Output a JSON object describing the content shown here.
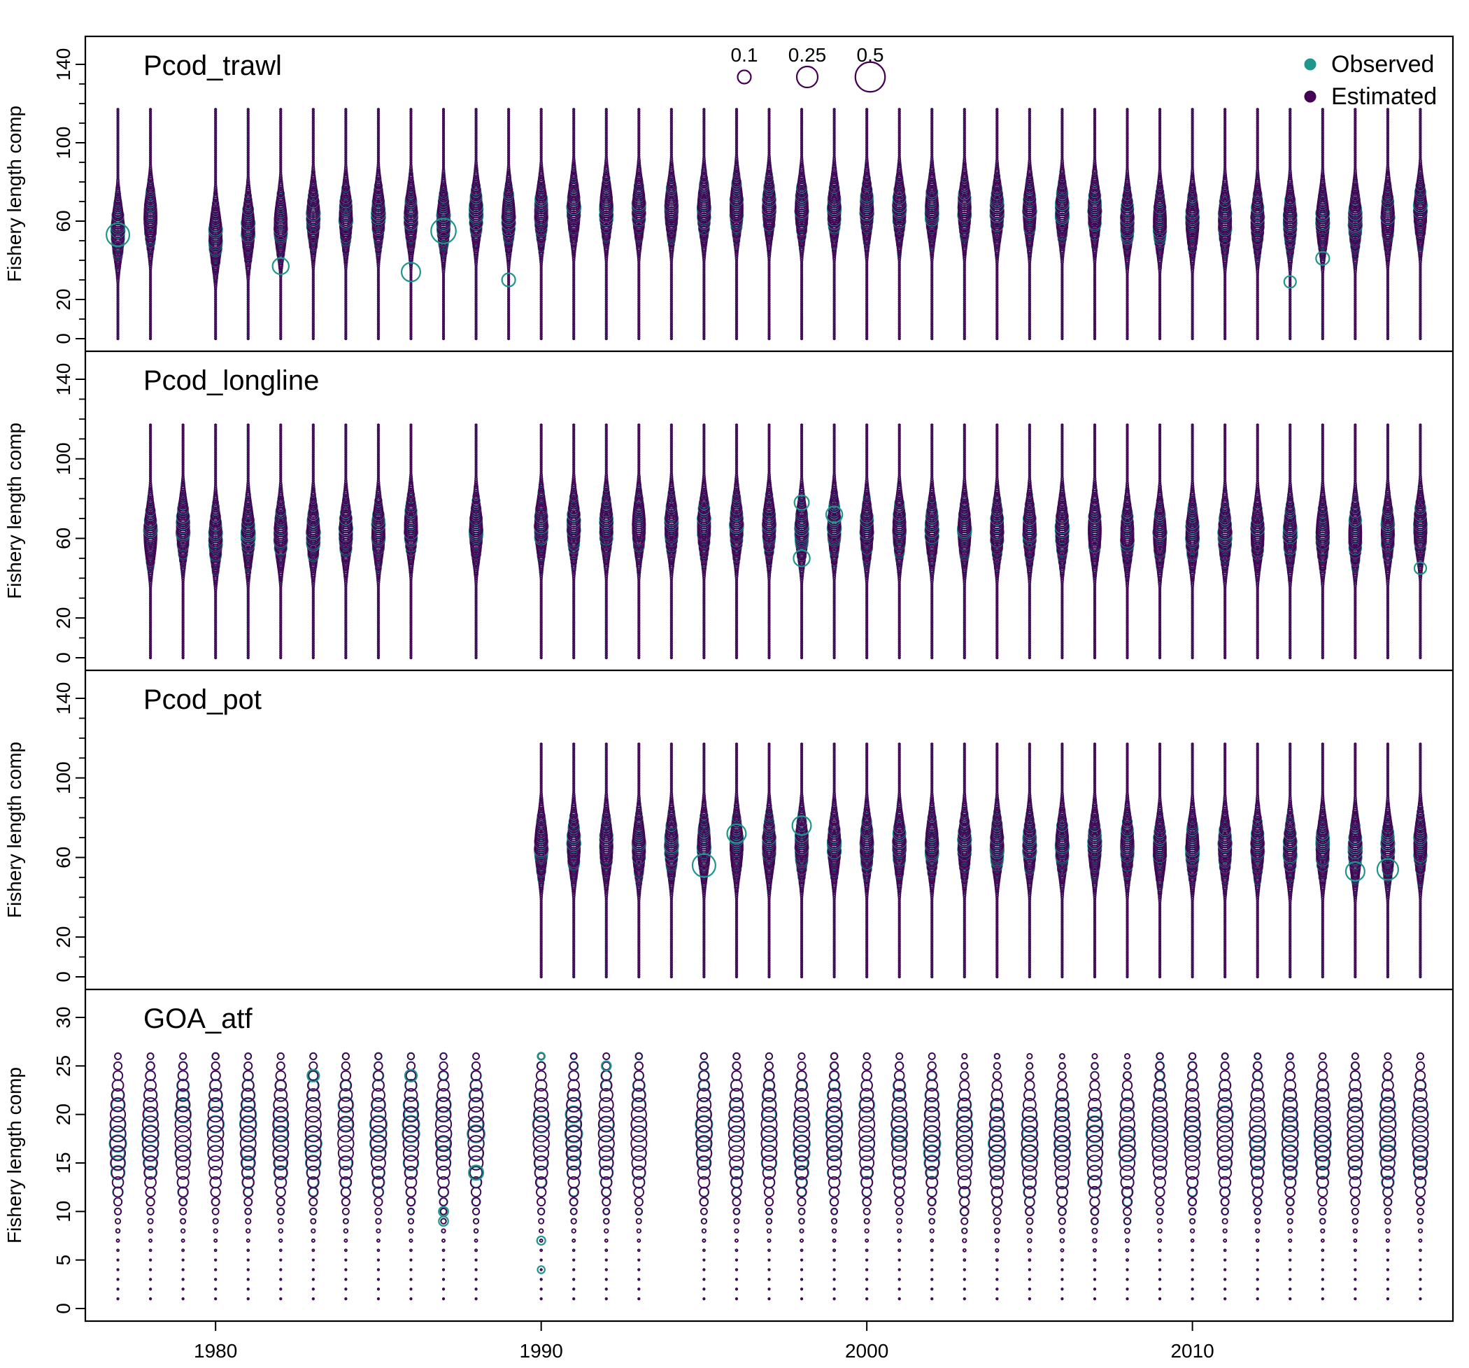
{
  "colors": {
    "observed": "#1f968b",
    "estimated": "#440154",
    "axis": "#000000",
    "background": "#ffffff"
  },
  "chart_data": {
    "type": "scatter",
    "subtype": "bubble",
    "xlim": [
      1976,
      2018
    ],
    "x_ticks": [
      1980,
      1990,
      2000,
      2010
    ],
    "ylabel": "Fishery length comp",
    "legend": {
      "placement": "top-right",
      "entries": [
        "Observed",
        "Estimated"
      ]
    },
    "bubble_size_legend": {
      "labels": [
        "0.1",
        "0.25",
        "0.5"
      ],
      "values": [
        0.1,
        0.25,
        0.5
      ]
    },
    "panels": [
      {
        "name": "Pcod_trawl",
        "ylim": [
          0,
          140
        ],
        "y_ticks": [
          0,
          20,
          60,
          100,
          140
        ],
        "y_minor_ticks": [
          10,
          30,
          40,
          50,
          70,
          80,
          90,
          110,
          120,
          130
        ],
        "bin_range": [
          0,
          117
        ],
        "years": [
          1977,
          1978,
          1980,
          1981,
          1982,
          1983,
          1984,
          1985,
          1986,
          1987,
          1988,
          1989,
          1990,
          1991,
          1992,
          1993,
          1994,
          1995,
          1996,
          1997,
          1998,
          1999,
          2000,
          2001,
          2002,
          2003,
          2004,
          2005,
          2006,
          2007,
          2008,
          2009,
          2010,
          2011,
          2012,
          2013,
          2014,
          2015,
          2016,
          2017
        ],
        "mode_length": [
          55,
          62,
          52,
          56,
          58,
          62,
          62,
          63,
          62,
          60,
          64,
          62,
          64,
          66,
          66,
          66,
          66,
          66,
          67,
          67,
          66,
          66,
          66,
          66,
          66,
          66,
          65,
          65,
          65,
          65,
          60,
          60,
          60,
          60,
          60,
          60,
          60,
          60,
          62,
          65
        ],
        "notable_observed": [
          {
            "year": 1977,
            "length": 53,
            "value": 0.3
          },
          {
            "year": 1982,
            "length": 37,
            "value": 0.15
          },
          {
            "year": 1986,
            "length": 34,
            "value": 0.2
          },
          {
            "year": 1987,
            "length": 55,
            "value": 0.35
          },
          {
            "year": 1989,
            "length": 30,
            "value": 0.1
          },
          {
            "year": 2013,
            "length": 29,
            "value": 0.08
          },
          {
            "year": 2014,
            "length": 41,
            "value": 0.1
          }
        ]
      },
      {
        "name": "Pcod_longline",
        "ylim": [
          0,
          140
        ],
        "y_ticks": [
          0,
          20,
          60,
          100,
          140
        ],
        "y_minor_ticks": [
          10,
          30,
          40,
          50,
          70,
          80,
          90,
          110,
          120,
          130
        ],
        "bin_range": [
          0,
          117
        ],
        "years": [
          1978,
          1979,
          1980,
          1981,
          1982,
          1983,
          1984,
          1985,
          1986,
          1988,
          1990,
          1991,
          1992,
          1993,
          1994,
          1995,
          1996,
          1997,
          1998,
          1999,
          2000,
          2001,
          2002,
          2003,
          2004,
          2005,
          2006,
          2007,
          2008,
          2009,
          2010,
          2011,
          2012,
          2013,
          2014,
          2015,
          2016,
          2017
        ],
        "mode_length": [
          62,
          65,
          60,
          62,
          62,
          62,
          63,
          63,
          66,
          64,
          66,
          66,
          66,
          66,
          66,
          66,
          66,
          66,
          64,
          66,
          64,
          65,
          64,
          64,
          64,
          64,
          64,
          64,
          62,
          62,
          62,
          62,
          62,
          62,
          62,
          62,
          63,
          65
        ],
        "notable_observed": [
          {
            "year": 1998,
            "length": 50,
            "value": 0.15
          },
          {
            "year": 1998,
            "length": 78,
            "value": 0.12
          },
          {
            "year": 1999,
            "length": 72,
            "value": 0.15
          },
          {
            "year": 2017,
            "length": 45,
            "value": 0.08
          }
        ]
      },
      {
        "name": "Pcod_pot",
        "ylim": [
          0,
          140
        ],
        "y_ticks": [
          0,
          20,
          60,
          100,
          140
        ],
        "y_minor_ticks": [
          10,
          30,
          40,
          50,
          70,
          80,
          90,
          110,
          120,
          130
        ],
        "bin_range": [
          0,
          117
        ],
        "years": [
          1990,
          1991,
          1992,
          1993,
          1994,
          1995,
          1996,
          1997,
          1998,
          1999,
          2000,
          2001,
          2002,
          2003,
          2004,
          2005,
          2006,
          2007,
          2008,
          2009,
          2010,
          2011,
          2012,
          2013,
          2014,
          2015,
          2016,
          2017
        ],
        "mode_length": [
          66,
          66,
          66,
          65,
          66,
          66,
          66,
          66,
          66,
          66,
          66,
          66,
          66,
          66,
          66,
          66,
          66,
          66,
          66,
          64,
          65,
          65,
          65,
          64,
          65,
          64,
          64,
          66
        ],
        "notable_observed": [
          {
            "year": 1995,
            "length": 56,
            "value": 0.3
          },
          {
            "year": 1996,
            "length": 72,
            "value": 0.2
          },
          {
            "year": 1998,
            "length": 76,
            "value": 0.2
          },
          {
            "year": 2015,
            "length": 53,
            "value": 0.2
          },
          {
            "year": 2016,
            "length": 54,
            "value": 0.25
          }
        ]
      },
      {
        "name": "GOA_atf",
        "ylim": [
          0,
          30
        ],
        "y_ticks": [
          0,
          5,
          10,
          15,
          20,
          25,
          30
        ],
        "y_minor_ticks": [],
        "bin_range": [
          1,
          26
        ],
        "years": [
          1977,
          1978,
          1979,
          1980,
          1981,
          1982,
          1983,
          1984,
          1985,
          1986,
          1987,
          1988,
          1990,
          1991,
          1992,
          1993,
          1995,
          1996,
          1997,
          1998,
          1999,
          2000,
          2001,
          2002,
          2003,
          2004,
          2005,
          2006,
          2007,
          2008,
          2009,
          2010,
          2011,
          2012,
          2013,
          2014,
          2015,
          2016,
          2017
        ],
        "mode_length": [
          18,
          18,
          18,
          18,
          18,
          18,
          18,
          18,
          18,
          18,
          18,
          18,
          18,
          18,
          18,
          18,
          18,
          18,
          18,
          18,
          18,
          18,
          18,
          18,
          17,
          17,
          17,
          17,
          17,
          17,
          18,
          18,
          18,
          18,
          18,
          18,
          18,
          18,
          18
        ],
        "notable_observed": [
          {
            "year": 1987,
            "length": 9,
            "value": 0.05
          },
          {
            "year": 1987,
            "length": 10,
            "value": 0.05
          },
          {
            "year": 1988,
            "length": 14,
            "value": 0.12
          },
          {
            "year": 1990,
            "length": 7,
            "value": 0.04
          },
          {
            "year": 1990,
            "length": 4,
            "value": 0.03
          },
          {
            "year": 1990,
            "length": 26,
            "value": 0.03
          },
          {
            "year": 1992,
            "length": 25,
            "value": 0.05
          },
          {
            "year": 1983,
            "length": 24,
            "value": 0.08
          },
          {
            "year": 1986,
            "length": 24,
            "value": 0.08
          }
        ]
      }
    ]
  }
}
